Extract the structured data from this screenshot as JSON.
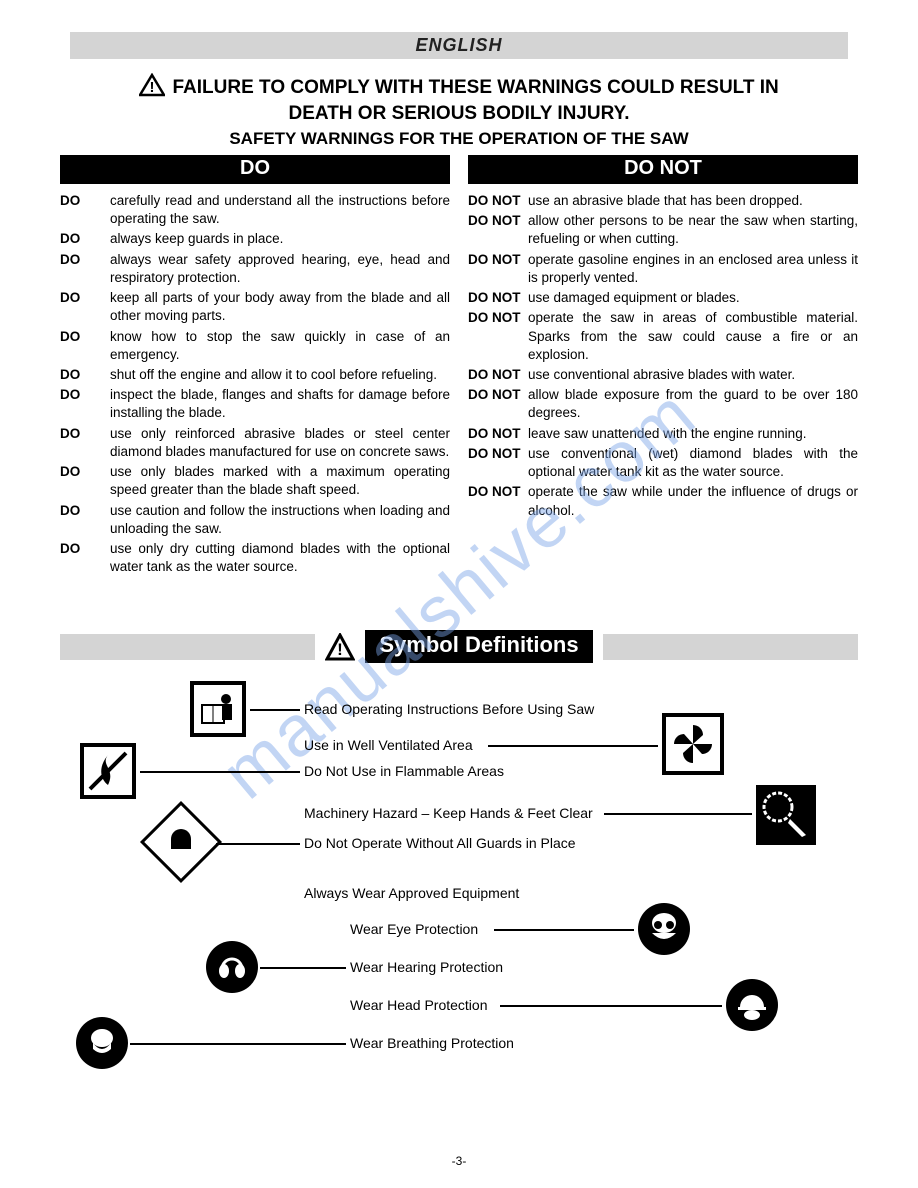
{
  "lang_bar": "ENGLISH",
  "warning_line1": "FAILURE TO COMPLY WITH THESE WARNINGS COULD RESULT IN",
  "warning_line2": "DEATH OR SERIOUS BODILY INJURY.",
  "safety_title": "SAFETY WARNINGS FOR THE OPERATION OF THE SAW",
  "do_header": "DO",
  "donot_header": "DO NOT",
  "do_lead": "DO",
  "donot_lead": "DO NOT",
  "do_items": [
    "carefully read and understand all the instructions before operating the saw.",
    "always keep guards in place.",
    "always wear safety approved hearing, eye, head and respiratory protection.",
    "keep all parts of your body away from the blade and all other moving parts.",
    "know how to stop the saw quickly in case of an emergency.",
    "shut off the engine and allow it to cool before refueling.",
    "inspect the blade, flanges and shafts for damage before installing the blade.",
    "use only reinforced abrasive blades or steel center diamond blades manufactured for use on concrete saws.",
    "use only blades marked with a maximum operating speed greater than the blade shaft speed.",
    "use caution and follow the instructions when loading and unloading the saw.",
    "use only dry cutting diamond blades with the optional water tank as the water source."
  ],
  "donot_items": [
    "use an abrasive blade that has been dropped.",
    "allow other persons to be near the saw when starting, refueling or when cutting.",
    "operate gasoline engines in an enclosed area unless it is properly vented.",
    "use damaged equipment or blades.",
    "operate the saw in areas of combustible material. Sparks from the saw could cause a fire or an explosion.",
    "use conventional abrasive blades with water.",
    "allow blade exposure from the guard to be over 180 degrees.",
    "leave saw unattended with the engine running.",
    "use conventional (wet) diamond blades with the optional water tank kit as the water source.",
    "operate the saw while under the influence of drugs or alcohol."
  ],
  "symb_title": "Symbol Definitions",
  "symbols": {
    "read": "Read Operating Instructions Before Using Saw",
    "vent": "Use in Well Ventilated Area",
    "flame": "Do Not Use in Flammable Areas",
    "hazard": "Machinery Hazard – Keep Hands & Feet Clear",
    "guards": "Do Not Operate Without All Guards in Place",
    "approved": "Always Wear Approved Equipment",
    "eye": "Wear Eye Protection",
    "hearing": "Wear Hearing Protection",
    "head": "Wear Head Protection",
    "breath": "Wear Breathing Protection"
  },
  "page_number": "-3-",
  "watermark": "manualshive.com",
  "colors": {
    "stripe": "#d4d4d4",
    "black": "#000000",
    "watermark": "#7aa4e8"
  }
}
